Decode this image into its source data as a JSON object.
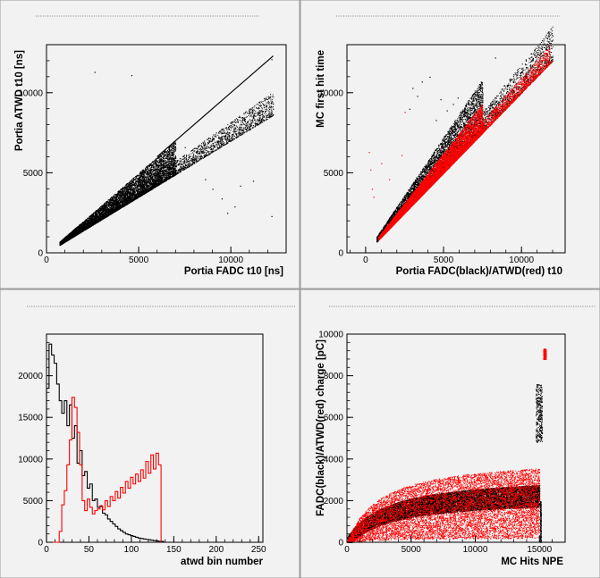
{
  "chart_data": [
    {
      "type": "scatter",
      "title": "",
      "xlabel": "Portia FADC t10 [ns]",
      "ylabel": "Portia ATWD t10 [ns]",
      "xlim": [
        0,
        13000
      ],
      "ylim": [
        0,
        13000
      ],
      "x_ticks": [
        0,
        5000,
        10000
      ],
      "y_ticks": [
        0,
        5000,
        10000
      ],
      "series": [
        {
          "color": "#000000",
          "band": {
            "x_range": [
              700,
              12300
            ],
            "min_ratio": 0.7,
            "max_ratio": 1.0,
            "dense_until": 7000
          },
          "outliers": [
            [
              9000,
              4000
            ],
            [
              9500,
              3400
            ],
            [
              10500,
              4200
            ],
            [
              11200,
              4500
            ],
            [
              10200,
              2900
            ],
            [
              8000,
              5800
            ],
            [
              7500,
              6600
            ],
            [
              2600,
              11300
            ],
            [
              4600,
              11100
            ],
            [
              12200,
              12100
            ],
            [
              12200,
              2300
            ],
            [
              9800,
              2500
            ],
            [
              8600,
              4600
            ]
          ]
        }
      ]
    },
    {
      "type": "scatter",
      "title": "",
      "xlabel": "Portia FADC(black)/ATWD(red) t10",
      "ylabel": "MC first hit time",
      "xlim": [
        -1200,
        12800
      ],
      "ylim": [
        0,
        13000
      ],
      "x_ticks": [
        0,
        5000,
        10000
      ],
      "y_ticks": [
        0,
        5000,
        10000
      ],
      "series": [
        {
          "color": "#000000",
          "band": {
            "x_range": [
              700,
              12000
            ],
            "min_ratio": 1.0,
            "max_ratio": 1.45,
            "dense_until": 7500
          },
          "outliers": [
            [
              3000,
              10300
            ],
            [
              3600,
              10700
            ],
            [
              4100,
              11000
            ],
            [
              3300,
              9800
            ],
            [
              4800,
              9600
            ],
            [
              5600,
              9300
            ],
            [
              5200,
              8900
            ],
            [
              8300,
              12200
            ],
            [
              11800,
              12200
            ],
            [
              2800,
              9000
            ],
            [
              4500,
              8300
            ],
            [
              5900,
              9700
            ]
          ]
        },
        {
          "color": "#ff0000",
          "band": {
            "x_range": [
              800,
              11800
            ],
            "min_ratio": 1.0,
            "max_ratio": 1.25,
            "dense_until": 7500
          },
          "outliers": [
            [
              200,
              6300
            ],
            [
              300,
              5200
            ],
            [
              1500,
              4600
            ],
            [
              400,
              4000
            ],
            [
              2300,
              6100
            ],
            [
              500,
              3500
            ],
            [
              1000,
              5600
            ],
            [
              2500,
              8800
            ]
          ]
        }
      ]
    },
    {
      "type": "histogram",
      "title": "",
      "xlabel": "atwd bin number",
      "ylabel": "",
      "xlim": [
        0,
        255
      ],
      "ylim": [
        0,
        25000
      ],
      "x_ticks": [
        0,
        50,
        100,
        150,
        200,
        250
      ],
      "y_ticks": [
        0,
        5000,
        10000,
        15000,
        20000
      ],
      "bin_width": 3,
      "series": [
        {
          "color": "#000000",
          "values": [
            18500,
            23800,
            22500,
            21500,
            19000,
            17000,
            15500,
            17000,
            14000,
            16500,
            12500,
            14000,
            9500,
            11000,
            8000,
            8500,
            6500,
            7000,
            5000,
            5200,
            4200,
            4300,
            3500,
            3300,
            2800,
            2500,
            2200,
            1900,
            1600,
            1400,
            1200,
            1000,
            900,
            800,
            700,
            600,
            500,
            450,
            400,
            350,
            300,
            250,
            200,
            150,
            120,
            100
          ]
        },
        {
          "color": "#ff0000",
          "values": [
            0,
            0,
            0,
            0,
            0,
            1300,
            4500,
            6200,
            9300,
            12300,
            17400,
            16200,
            13200,
            9300,
            5000,
            3800,
            5200,
            4200,
            3400,
            3800,
            4000,
            4400,
            3900,
            5000,
            4300,
            5500,
            5000,
            6100,
            5300,
            6600,
            5900,
            7300,
            6500,
            7800,
            7000,
            8200,
            7300,
            8700,
            7700,
            9700,
            8300,
            10500,
            8800,
            10700,
            9300
          ]
        }
      ]
    },
    {
      "type": "scatter",
      "title": "",
      "xlabel": "MC Hits NPE",
      "ylabel": "FADC(black)/ATWD(red) charge [pC]",
      "xlim": [
        0,
        17000
      ],
      "ylim": [
        0,
        10000
      ],
      "x_ticks": [
        0,
        5000,
        10000,
        15000
      ],
      "y_ticks": [
        0,
        2000,
        4000,
        6000,
        8000,
        10000
      ],
      "series": [
        {
          "color": "#000000",
          "curve": "2700*x/(x+3200)",
          "x_range": [
            0,
            15000
          ]
        },
        {
          "color": "#ff0000",
          "curve": "3000*x/(x+2500)",
          "x_range": [
            0,
            15000
          ],
          "spread": "wide"
        },
        {
          "color": "#000000",
          "vertical_cluster": {
            "x": [
              14700,
              15200
            ],
            "y": [
              4800,
              7600
            ]
          }
        },
        {
          "color": "#ff0000",
          "vertical_cluster": {
            "x": [
              15300,
              15500
            ],
            "y": [
              8800,
              9300
            ]
          }
        }
      ]
    }
  ]
}
